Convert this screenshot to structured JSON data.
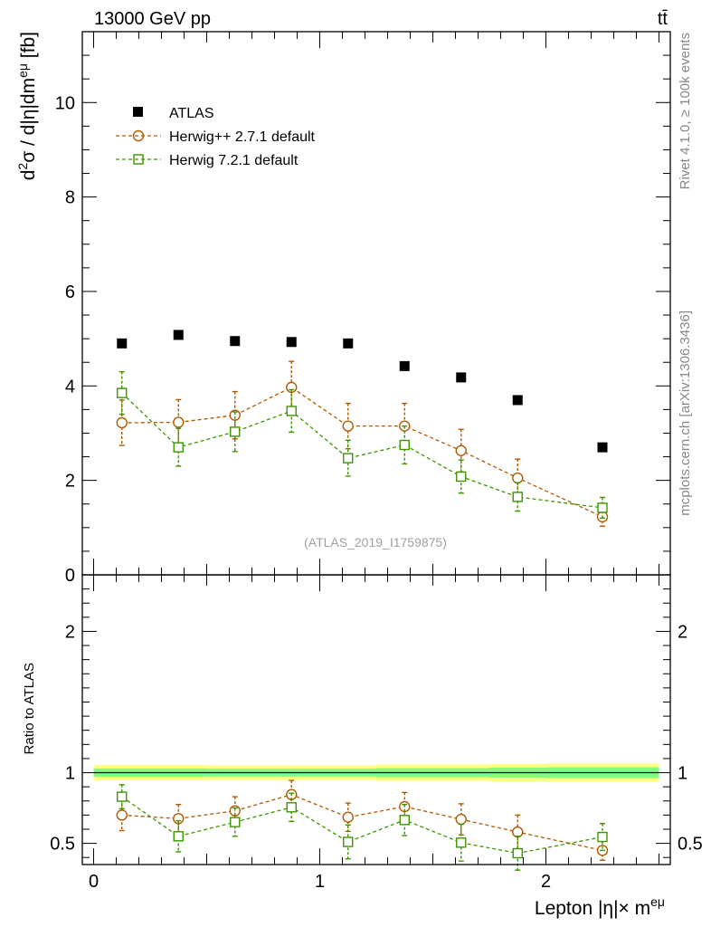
{
  "header": {
    "left_label": "13000 GeV pp",
    "right_label": "tt̄"
  },
  "side_labels": {
    "rivet": "Rivet 4.1.0, ≥ 100k events",
    "mcplots": "mcplots.cern.ch [arXiv:1306.3436]"
  },
  "analysis_tag": "(ATLAS_2019_I1759875)",
  "colors": {
    "atlas": "#000000",
    "herwigpp": "#b35900",
    "herwig7": "#3c9600",
    "band_outer": "#ffff80",
    "band_inner": "#80ff80"
  },
  "chart_data": [
    {
      "type": "scatter",
      "panel": "main",
      "ylabel": "d²σ / d|η|dm^eμ [fb]",
      "ylabel_parts": {
        "main": "d",
        "sup1": "2",
        "mid": "σ / d|η|dm",
        "sup2": "eμ",
        "tail": " [fb]"
      },
      "xlim": [
        -0.05,
        2.55
      ],
      "ylim": [
        0,
        11.5
      ],
      "yticks": [
        0,
        2,
        4,
        6,
        8,
        10
      ],
      "ytick_labels": [
        "0",
        "2",
        "4",
        "6",
        "8",
        "10"
      ],
      "legend": [
        {
          "label": "ATLAS",
          "series": "atlas"
        },
        {
          "label": "Herwig++ 2.7.1 default",
          "series": "herwigpp"
        },
        {
          "label": "Herwig 7.2.1 default",
          "series": "herwig7"
        }
      ],
      "series": [
        {
          "name": "ATLAS",
          "key": "atlas",
          "marker": "filled-square",
          "x": [
            0.125,
            0.375,
            0.625,
            0.875,
            1.125,
            1.375,
            1.625,
            1.875,
            2.25
          ],
          "y": [
            4.9,
            5.08,
            4.95,
            4.93,
            4.9,
            4.42,
            4.18,
            3.7,
            2.7
          ]
        },
        {
          "name": "Herwig++ 2.7.1 default",
          "key": "herwigpp",
          "marker": "open-circle",
          "x": [
            0.125,
            0.375,
            0.625,
            0.875,
            1.125,
            1.375,
            1.625,
            1.875,
            2.25
          ],
          "y": [
            3.22,
            3.23,
            3.38,
            3.97,
            3.15,
            3.15,
            2.63,
            2.05,
            1.23
          ],
          "err": [
            0.48,
            0.48,
            0.5,
            0.55,
            0.48,
            0.48,
            0.45,
            0.4,
            0.2
          ]
        },
        {
          "name": "Herwig 7.2.1 default",
          "key": "herwig7",
          "marker": "open-square",
          "x": [
            0.125,
            0.375,
            0.625,
            0.875,
            1.125,
            1.375,
            1.625,
            1.875,
            2.25
          ],
          "y": [
            3.85,
            2.7,
            3.03,
            3.47,
            2.47,
            2.75,
            2.08,
            1.65,
            1.42
          ],
          "err": [
            0.45,
            0.4,
            0.42,
            0.45,
            0.38,
            0.4,
            0.35,
            0.3,
            0.22
          ]
        }
      ]
    },
    {
      "type": "scatter",
      "panel": "ratio",
      "ylabel": "Ratio to ATLAS",
      "xlabel": "Lepton |η|× m^eμ",
      "xlabel_parts": {
        "main": "Lepton |η|× m",
        "sup": "eμ"
      },
      "xlim": [
        -0.05,
        2.55
      ],
      "ylim": [
        0.35,
        2.4
      ],
      "xticks": [
        0,
        1,
        2
      ],
      "xtick_labels": [
        "0",
        "1",
        "2"
      ],
      "yticks": [
        0.5,
        1,
        2
      ],
      "ytick_labels": [
        "0.5",
        "1",
        "2"
      ],
      "band": {
        "bins": [
          0.0,
          0.25,
          0.5,
          0.75,
          1.0,
          1.25,
          1.5,
          1.75,
          2.0,
          2.5
        ],
        "outer": [
          0.055,
          0.055,
          0.052,
          0.052,
          0.052,
          0.058,
          0.058,
          0.062,
          0.065
        ],
        "inner": [
          0.03,
          0.03,
          0.028,
          0.028,
          0.028,
          0.032,
          0.032,
          0.035,
          0.038
        ]
      },
      "series": [
        {
          "name": "Herwig++ 2.7.1 default",
          "key": "herwigpp",
          "marker": "open-circle",
          "x": [
            0.125,
            0.375,
            0.625,
            0.875,
            1.125,
            1.375,
            1.625,
            1.875,
            2.25
          ],
          "y": [
            0.7,
            0.675,
            0.73,
            0.845,
            0.685,
            0.76,
            0.67,
            0.58,
            0.45
          ],
          "err": [
            0.11,
            0.1,
            0.1,
            0.1,
            0.1,
            0.1,
            0.11,
            0.12,
            0.07
          ]
        },
        {
          "name": "Herwig 7.2.1 default",
          "key": "herwig7",
          "marker": "open-square",
          "x": [
            0.125,
            0.375,
            0.625,
            0.875,
            1.125,
            1.375,
            1.625,
            1.875,
            2.25
          ],
          "y": [
            0.83,
            0.55,
            0.65,
            0.755,
            0.51,
            0.665,
            0.505,
            0.43,
            0.545
          ],
          "err": [
            0.085,
            0.11,
            0.1,
            0.1,
            0.12,
            0.11,
            0.13,
            0.12,
            0.095
          ]
        }
      ]
    }
  ]
}
